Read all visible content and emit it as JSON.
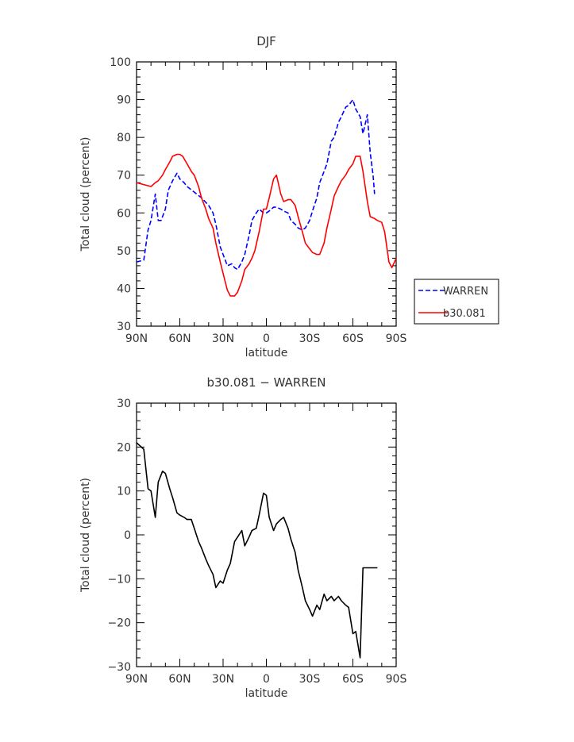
{
  "chart_data": [
    {
      "type": "line",
      "title": "DJF",
      "xlabel": "latitude",
      "ylabel": "Total cloud (percent)",
      "xlim": [
        90,
        -90
      ],
      "ylim": [
        30,
        100
      ],
      "x_tick_values": [
        90,
        60,
        30,
        0,
        -30,
        -60,
        -90
      ],
      "x_tick_labels": [
        "90N",
        "60N",
        "30N",
        "0",
        "30S",
        "60S",
        "90S"
      ],
      "y_ticks": [
        30,
        40,
        50,
        60,
        70,
        80,
        90,
        100
      ],
      "grid": false,
      "legend_position": "right",
      "series": [
        {
          "name": "WARREN",
          "color": "#0000ff",
          "dash": "dashed",
          "x": [
            90,
            85,
            82,
            80,
            77,
            75,
            73,
            70,
            68,
            65,
            62,
            60,
            57,
            55,
            50,
            45,
            40,
            37,
            35,
            32,
            30,
            27,
            24,
            22,
            20,
            17,
            15,
            12,
            10,
            7,
            5,
            2,
            0,
            -2,
            -5,
            -7,
            -10,
            -12,
            -15,
            -17,
            -20,
            -22,
            -25,
            -27,
            -30,
            -32,
            -35,
            -37,
            -40,
            -42,
            -45,
            -47,
            -50,
            -52,
            -55,
            -57,
            -60,
            -62,
            -65,
            -67,
            -70,
            -72,
            -74,
            -75
          ],
          "values": [
            47,
            47.5,
            55.5,
            58,
            65,
            58,
            58,
            61,
            66,
            68.5,
            70.5,
            69,
            68,
            67,
            65.5,
            64,
            62,
            60,
            57,
            51,
            49,
            46,
            46.5,
            45.5,
            45,
            47,
            49,
            54,
            58,
            60,
            61,
            60,
            60,
            60.5,
            61.5,
            61.5,
            61,
            60.5,
            60,
            58,
            57,
            56,
            55.5,
            56,
            58,
            60.5,
            64,
            68,
            71,
            73,
            79,
            80,
            84,
            85.5,
            88,
            88.5,
            90,
            87.5,
            85.5,
            81,
            86,
            76,
            70,
            65
          ]
        },
        {
          "name": "b30.081",
          "color": "#ff0000",
          "dash": "solid",
          "x": [
            90,
            85,
            80,
            77,
            75,
            72,
            70,
            67,
            65,
            62,
            60,
            58,
            55,
            52,
            50,
            47,
            45,
            42,
            40,
            37,
            35,
            32,
            30,
            27,
            25,
            22,
            20,
            17,
            15,
            12,
            10,
            8,
            5,
            2,
            0,
            -2,
            -5,
            -7,
            -10,
            -12,
            -15,
            -17,
            -20,
            -22,
            -25,
            -27,
            -30,
            -32,
            -35,
            -37,
            -40,
            -42,
            -45,
            -47,
            -50,
            -52,
            -55,
            -57,
            -60,
            -62,
            -65,
            -67,
            -70,
            -72,
            -75,
            -77,
            -80,
            -82,
            -85,
            -87,
            -90
          ],
          "values": [
            68,
            67.5,
            67,
            68,
            68.5,
            70,
            71.5,
            73.5,
            75,
            75.5,
            75.5,
            75,
            73,
            71,
            70,
            67,
            64,
            61,
            58.5,
            56,
            52,
            47,
            44,
            39.5,
            38,
            38,
            39,
            42,
            45,
            46.5,
            48,
            50,
            55,
            61,
            61,
            64,
            69,
            70,
            65,
            63,
            63.5,
            63.5,
            62,
            59,
            55,
            52,
            50.5,
            49.5,
            49,
            49,
            52,
            56,
            61,
            64.5,
            67,
            68.5,
            70,
            71.5,
            73,
            75,
            75,
            71,
            63,
            59,
            58.5,
            58,
            57.5,
            55,
            47,
            45.5,
            48
          ]
        }
      ]
    },
    {
      "type": "line",
      "title": "b30.081 − WARREN",
      "xlabel": "latitude",
      "ylabel": "Total cloud (percent)",
      "xlim": [
        90,
        -90
      ],
      "ylim": [
        -30,
        30
      ],
      "x_tick_values": [
        90,
        60,
        30,
        0,
        -30,
        -60,
        -90
      ],
      "x_tick_labels": [
        "90N",
        "60N",
        "30N",
        "0",
        "30S",
        "60S",
        "90S"
      ],
      "y_ticks": [
        -30,
        -20,
        -10,
        0,
        10,
        20,
        30
      ],
      "y_tick_labels": [
        "−30",
        "−20",
        "−10",
        "0",
        "10",
        "20",
        "30"
      ],
      "grid": false,
      "series": [
        {
          "color": "#000000",
          "dash": "solid",
          "x": [
            90,
            85,
            82,
            80,
            77,
            75,
            72,
            70,
            67,
            65,
            62,
            60,
            57,
            55,
            52,
            50,
            47,
            45,
            42,
            40,
            37,
            35,
            32,
            30,
            27,
            25,
            22,
            20,
            17,
            15,
            12,
            10,
            7,
            5,
            2,
            0,
            -2,
            -5,
            -7,
            -10,
            -12,
            -15,
            -17,
            -20,
            -22,
            -25,
            -27,
            -30,
            -32,
            -35,
            -37,
            -40,
            -42,
            -45,
            -47,
            -50,
            -52,
            -55,
            -57,
            -60,
            -62,
            -65,
            -67,
            -70,
            -72,
            -75,
            -77
          ],
          "values": [
            21,
            19.5,
            10.5,
            10,
            4,
            12,
            14.5,
            14,
            10.5,
            8.5,
            5,
            4.5,
            4,
            3.5,
            3.5,
            1.5,
            -1.5,
            -3,
            -5.5,
            -7,
            -9,
            -12,
            -10.5,
            -11,
            -8,
            -6.5,
            -1.5,
            -0.5,
            1,
            -2.5,
            -0.5,
            1,
            1.5,
            4.5,
            9.5,
            9,
            4,
            1,
            2.5,
            3.5,
            4,
            1.5,
            -1,
            -4,
            -8,
            -12,
            -15,
            -17,
            -18.5,
            -16,
            -17,
            -13.5,
            -15,
            -14,
            -15,
            -14,
            -15,
            -16,
            -16.5,
            -22.5,
            -22,
            -28,
            -7.5,
            -7.5,
            -7.5,
            -7.5,
            -7.5
          ]
        }
      ]
    }
  ]
}
